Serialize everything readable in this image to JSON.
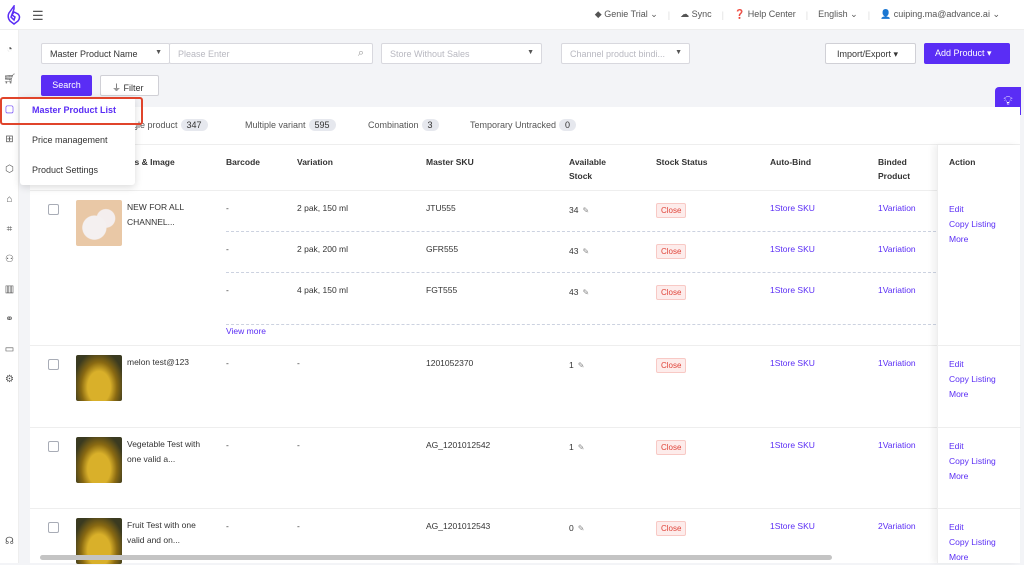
{
  "topbar": {
    "plan": "Genie Trial",
    "sync": "Sync",
    "help": "Help Center",
    "language": "English",
    "user": "cuiping.ma@advance.ai"
  },
  "filters": {
    "field_select": "Master Product Name",
    "search_placeholder": "Please Enter",
    "store_placeholder": "Store Without Sales",
    "channel_placeholder": "Channel product bindi...",
    "search_button": "Search",
    "filter_button": "Filter",
    "import_export": "Import/Export",
    "add_product": "Add Product"
  },
  "menu": {
    "items": [
      {
        "label": "Master Product List",
        "active": true
      },
      {
        "label": "Price management"
      },
      {
        "label": "Product Settings"
      }
    ]
  },
  "tabs": [
    {
      "label": "ngle product",
      "count": "347"
    },
    {
      "label": "Multiple variant",
      "count": "595"
    },
    {
      "label": "Combination",
      "count": "3"
    },
    {
      "label": "Temporary Untracked",
      "count": "0"
    }
  ],
  "columns": {
    "product": "cts & Image",
    "barcode": "Barcode",
    "variation": "Variation",
    "sku": "Master SKU",
    "stock": "Available Stock",
    "status": "Stock Status",
    "autobind": "Auto-Bind",
    "binded": "Binded Product",
    "action": "Action"
  },
  "rows": [
    {
      "name": "NEW FOR ALL CHANNEL...",
      "image": "kitty",
      "variants": [
        {
          "barcode": "-",
          "variation": "2 pak, 150 ml",
          "sku": "JTU555",
          "stock": "34",
          "status": "Close",
          "autobind": "1Store SKU",
          "binded": "1Variation"
        },
        {
          "barcode": "-",
          "variation": "2 pak, 200 ml",
          "sku": "GFR555",
          "stock": "43",
          "status": "Close",
          "autobind": "1Store SKU",
          "binded": "1Variation"
        },
        {
          "barcode": "-",
          "variation": "4 pak, 150 ml",
          "sku": "FGT555",
          "stock": "43",
          "status": "Close",
          "autobind": "1Store SKU",
          "binded": "1Variation"
        }
      ],
      "view_more": "View more"
    },
    {
      "name": "melon test@123",
      "image": "oil",
      "variants": [
        {
          "barcode": "-",
          "variation": "-",
          "sku": "1201052370",
          "stock": "1",
          "status": "Close",
          "autobind": "1Store SKU",
          "binded": "1Variation"
        }
      ]
    },
    {
      "name": "Vegetable Test with one valid a...",
      "image": "oil",
      "variants": [
        {
          "barcode": "-",
          "variation": "-",
          "sku": "AG_1201012542",
          "stock": "1",
          "status": "Close",
          "autobind": "1Store SKU",
          "binded": "1Variation"
        }
      ]
    },
    {
      "name": "Fruit Test with one valid and on...",
      "image": "oil",
      "variants": [
        {
          "barcode": "-",
          "variation": "-",
          "sku": "AG_1201012543",
          "stock": "0",
          "status": "Close",
          "autobind": "1Store SKU",
          "binded": "2Variation"
        }
      ]
    }
  ],
  "actions": {
    "edit": "Edit",
    "copy": "Copy Listing",
    "more": "More"
  },
  "colors": {
    "accent": "#5a2df5",
    "danger": "#e0443a"
  }
}
